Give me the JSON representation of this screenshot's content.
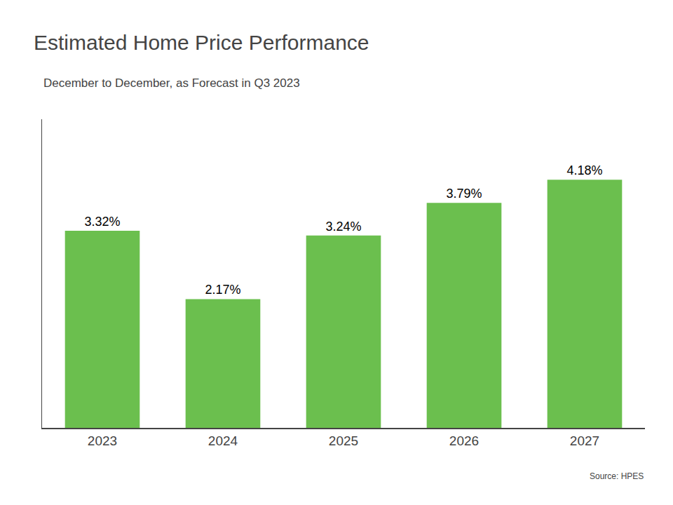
{
  "chart_data": {
    "type": "bar",
    "title": "Estimated Home Price Performance",
    "subtitle": "December to December, as Forecast in Q3 2023",
    "source": "Source: HPES",
    "categories": [
      "2023",
      "2024",
      "2025",
      "2026",
      "2027"
    ],
    "values": [
      3.32,
      2.17,
      3.24,
      3.79,
      4.18
    ],
    "value_labels": [
      "3.32%",
      "2.17%",
      "3.24%",
      "3.79%",
      "4.18%"
    ],
    "data_labels": true,
    "color": "#6BBF4E",
    "ylim": [
      0,
      5.2
    ],
    "tick_labels": "x",
    "grid": false
  }
}
